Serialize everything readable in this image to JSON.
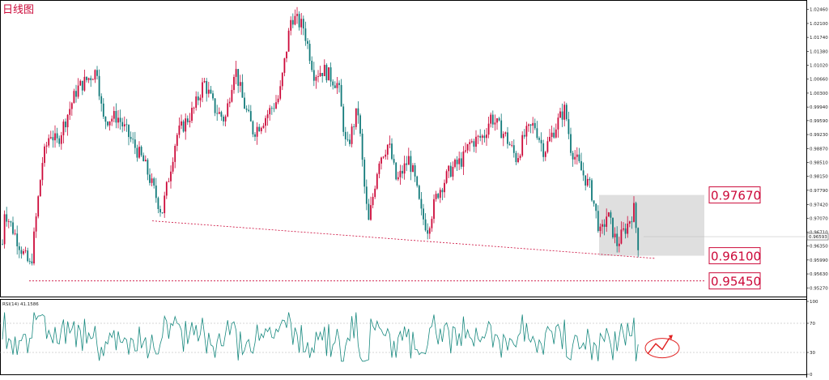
{
  "chart_data": {
    "type": "candlestick",
    "title": "日线图",
    "price_axis": {
      "ticks": [
        "1.02460",
        "1.02100",
        "1.01740",
        "1.01380",
        "1.01020",
        "1.00660",
        "1.00300",
        "0.99940",
        "0.99590",
        "0.99230",
        "0.98870",
        "0.98510",
        "0.98150",
        "0.97790",
        "0.97420",
        "0.97070",
        "0.96710",
        "0.96350",
        "0.95990",
        "0.95630",
        "0.95270"
      ],
      "ylim": [
        0.9515,
        1.0258
      ],
      "current_price": "0.96593"
    },
    "key_levels": [
      {
        "label": "0.97670",
        "value": 0.9767
      },
      {
        "label": "0.96100",
        "value": 0.961
      },
      {
        "label": "0.95450",
        "value": 0.9545
      }
    ],
    "range_box": {
      "high": 0.9767,
      "low": 0.961
    },
    "trendline": {
      "from_price": 0.97,
      "to_price": 0.9603
    },
    "rsi": {
      "label": "RSI(14) 41.1586",
      "levels": [
        70,
        30
      ],
      "ticks": [
        "100",
        "70",
        "30",
        "0"
      ],
      "ylim": [
        0,
        100
      ],
      "last_value": 41.16
    },
    "colors": {
      "bull": "#cc0a3a",
      "bear": "#117a7a",
      "level": "#cc0a3a",
      "rsi_line": "#18897f",
      "box": "#d9d9d9",
      "annotation": "#e02020"
    }
  }
}
